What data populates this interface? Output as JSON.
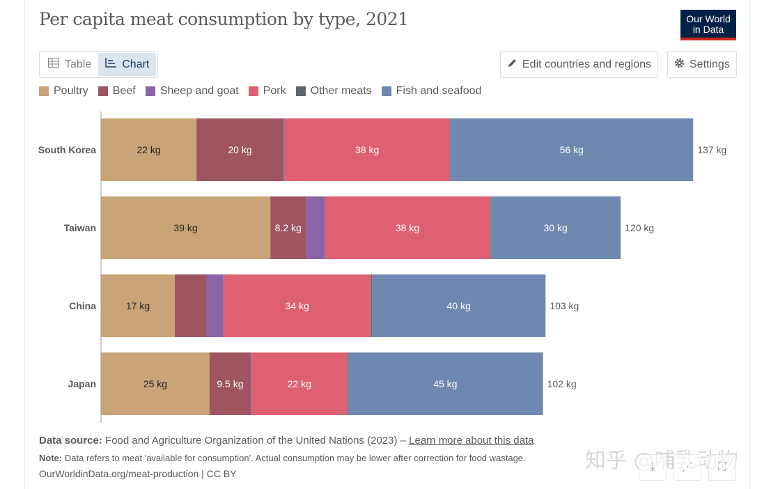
{
  "header": {
    "title": "Per capita meat consumption by type, 2021",
    "logo_line1": "Our World",
    "logo_line2": "in Data"
  },
  "toolbar": {
    "tab_table": "Table",
    "tab_chart": "Chart",
    "edit_label": "Edit countries and regions",
    "settings_label": "Settings"
  },
  "chart_data": {
    "type": "bar",
    "orientation": "horizontal",
    "stacked": true,
    "title": "Per capita meat consumption by type, 2021",
    "unit": "kg",
    "legend_position": "top",
    "categories": [
      "South Korea",
      "Taiwan",
      "China",
      "Japan"
    ],
    "series": [
      {
        "name": "Poultry",
        "color": "#c8a476",
        "values": [
          22,
          39,
          17,
          25
        ],
        "labels": [
          "22 kg",
          "39 kg",
          "17 kg",
          "25 kg"
        ]
      },
      {
        "name": "Beef",
        "color": "#9e5560",
        "values": [
          20,
          8.2,
          7.3,
          9.5
        ],
        "labels": [
          "20 kg",
          "8.2 kg",
          "",
          "9.5 kg"
        ]
      },
      {
        "name": "Sheep and goat",
        "color": "#8b64a8",
        "values": [
          0.3,
          4.4,
          3.9,
          0.2
        ],
        "labels": [
          "",
          "",
          "",
          ""
        ]
      },
      {
        "name": "Pork",
        "color": "#df6171",
        "values": [
          38,
          38,
          34,
          22
        ],
        "labels": [
          "38 kg",
          "38 kg",
          "34 kg",
          "22 kg"
        ]
      },
      {
        "name": "Other meats",
        "color": "#60666e",
        "values": [
          0.1,
          0.1,
          0.2,
          0.1
        ],
        "labels": [
          "",
          "",
          "",
          ""
        ]
      },
      {
        "name": "Fish and seafood",
        "color": "#6e88b0",
        "values": [
          56,
          30,
          40,
          45
        ],
        "labels": [
          "56 kg",
          "30 kg",
          "40 kg",
          "45 kg"
        ]
      }
    ],
    "totals": [
      "137 kg",
      "120 kg",
      "103 kg",
      "102 kg"
    ],
    "xlim": [
      0,
      137
    ]
  },
  "footer": {
    "source_label": "Data source:",
    "source_text": "Food and Agriculture Organization of the United Nations (2023) –",
    "source_link": "Learn more about this data",
    "note_label": "Note:",
    "note_text": "Data refers to meat 'available for consumption'. Actual consumption may be lower after correction for food wastage.",
    "credit": "OurWorldinData.org/meat-production | CC BY"
  },
  "watermark": "知乎 @哺乳动物"
}
